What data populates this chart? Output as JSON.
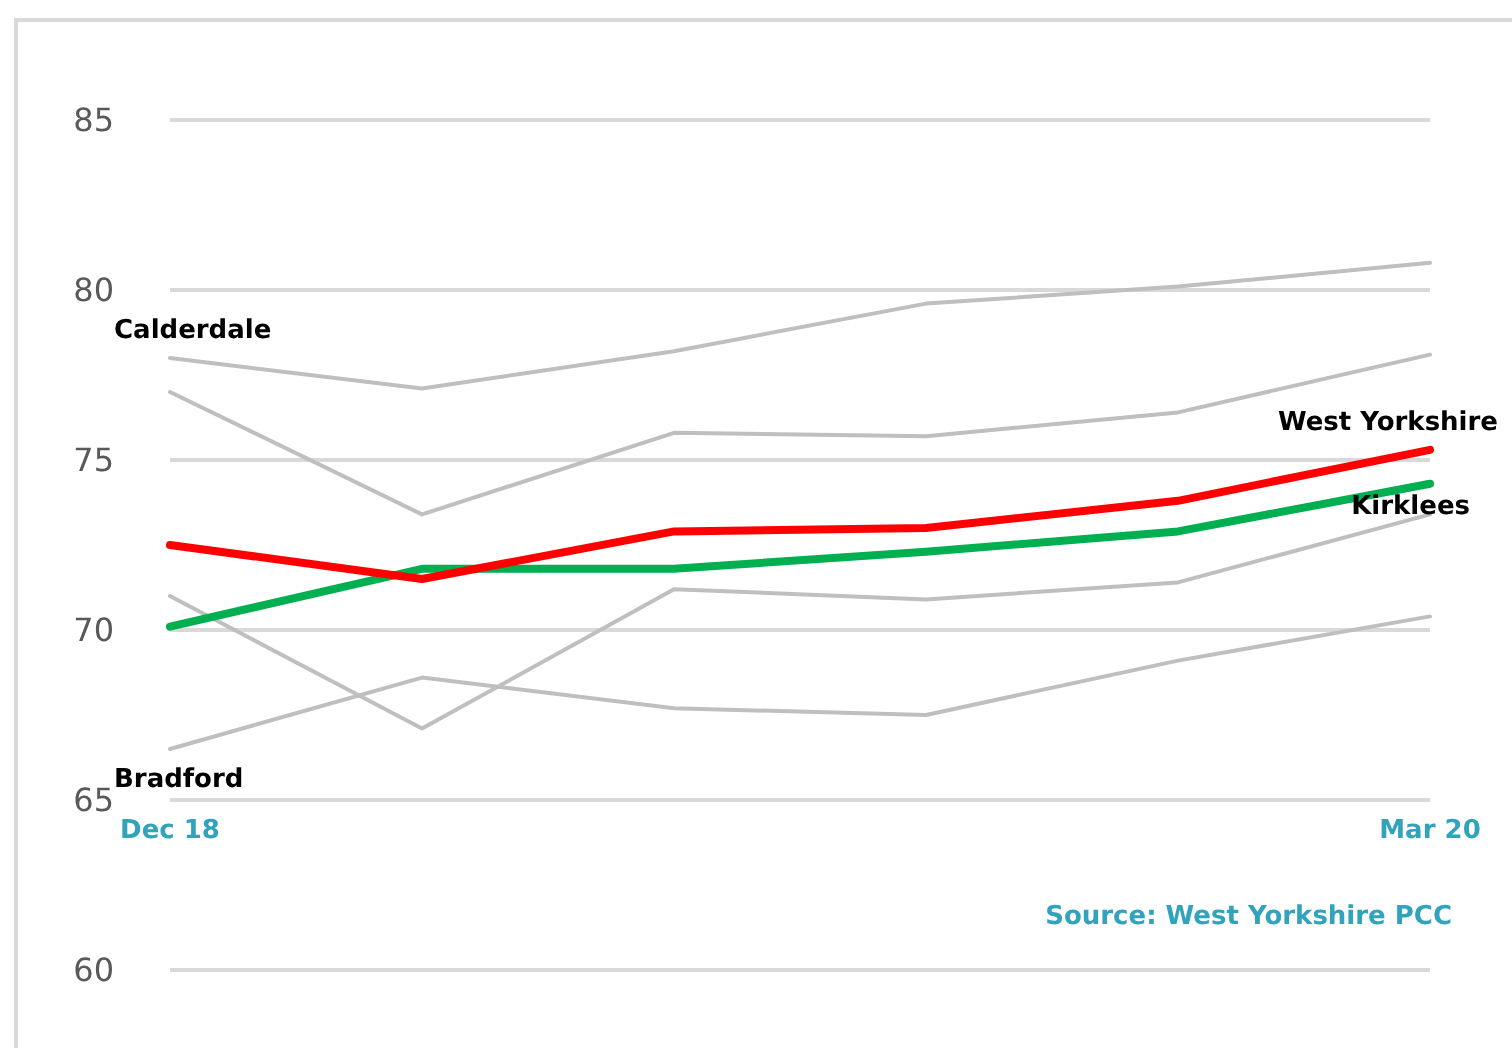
{
  "chart_data": {
    "type": "line",
    "categories": [
      "Dec 18",
      null,
      null,
      null,
      null,
      "Mar 20"
    ],
    "series": [
      {
        "name": "Calderdale",
        "color": "#bfbfbf",
        "values": [
          78.0,
          77.1,
          78.2,
          79.6,
          80.1,
          80.8
        ]
      },
      {
        "color": "#bfbfbf",
        "values": [
          77.0,
          73.4,
          75.8,
          75.7,
          76.4,
          78.1
        ]
      },
      {
        "color": "#bfbfbf",
        "values": [
          71.0,
          67.1,
          71.2,
          70.9,
          71.4,
          73.4
        ]
      },
      {
        "name": "Bradford",
        "color": "#bfbfbf",
        "values": [
          66.5,
          68.6,
          67.7,
          67.5,
          69.1,
          70.4
        ]
      },
      {
        "name": "Kirklees",
        "color": "#00b050",
        "values": [
          70.1,
          71.8,
          71.8,
          72.3,
          72.9,
          74.3
        ]
      },
      {
        "name": "West Yorkshire",
        "color": "#ff0000",
        "values": [
          72.5,
          71.5,
          72.9,
          73.0,
          73.8,
          75.3
        ]
      }
    ],
    "ylim": [
      60,
      85
    ],
    "yticks": [
      60,
      65,
      70,
      75,
      80,
      85
    ],
    "grid": "y",
    "legend": false,
    "marker": "none",
    "line_style": "solid",
    "annotations": [
      "Source: West Yorkshire PCC"
    ]
  }
}
